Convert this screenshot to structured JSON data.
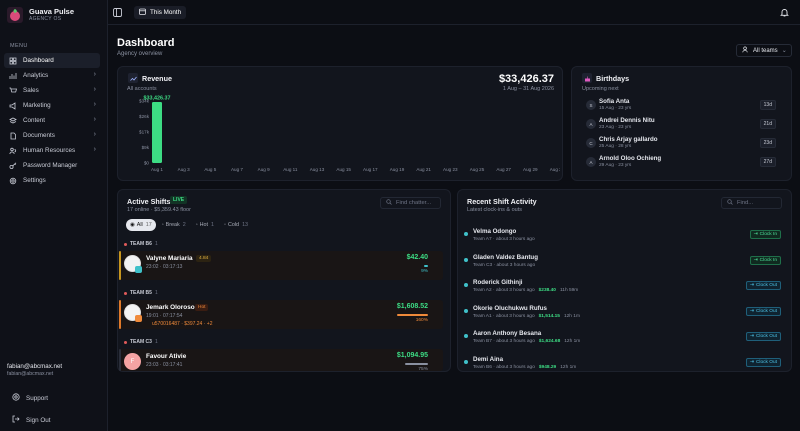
{
  "app": {
    "name": "Guava Pulse",
    "subtitle": "AGENCY OS"
  },
  "sidebar": {
    "menu_label": "MENU",
    "items": [
      {
        "label": "Dashboard",
        "icon": "grid-icon",
        "active": true,
        "chevron": false
      },
      {
        "label": "Analytics",
        "icon": "chart-icon",
        "chevron": true
      },
      {
        "label": "Sales",
        "icon": "cart-icon",
        "chevron": true
      },
      {
        "label": "Marketing",
        "icon": "megaphone-icon",
        "chevron": true
      },
      {
        "label": "Content",
        "icon": "layers-icon",
        "chevron": true
      },
      {
        "label": "Documents",
        "icon": "document-icon",
        "chevron": true
      },
      {
        "label": "Human Resources",
        "icon": "users-icon",
        "chevron": true
      },
      {
        "label": "Password Manager",
        "icon": "key-icon",
        "chevron": false
      },
      {
        "label": "Settings",
        "icon": "gear-icon",
        "chevron": false
      }
    ],
    "user_name": "fabian@abcmax.net",
    "user_email": "fabian@abcmax.net",
    "support": "Support",
    "sign_out": "Sign Out"
  },
  "topbar": {
    "period": "This Month"
  },
  "page": {
    "title": "Dashboard",
    "subtitle": "Agency overview",
    "teams_filter": "All teams"
  },
  "revenue": {
    "title": "Revenue",
    "subtitle": "All accounts",
    "total": "$33,426.37",
    "range": "1 Aug – 31 Aug 2026",
    "bar_label": "$33,426.37"
  },
  "chart_data": {
    "type": "bar",
    "title": "Revenue",
    "categories": [
      "Aug 1",
      "Aug 3",
      "Aug 5",
      "Aug 7",
      "Aug 9",
      "Aug 11",
      "Aug 13",
      "Aug 15",
      "Aug 17",
      "Aug 19",
      "Aug 21",
      "Aug 23",
      "Aug 25",
      "Aug 27",
      "Aug 29",
      "Aug 31"
    ],
    "values": [
      33426.37,
      0,
      0,
      0,
      0,
      0,
      0,
      0,
      0,
      0,
      0,
      0,
      0,
      0,
      0,
      0
    ],
    "y_ticks": [
      "$0",
      "$9k",
      "$17k",
      "$26k",
      "$34k"
    ],
    "ylim": [
      0,
      34000
    ],
    "grid": false
  },
  "birthdays": {
    "title": "Birthdays",
    "subtitle": "Upcoming next",
    "items": [
      {
        "initials": "S",
        "name": "Sofia Anta",
        "detail": "15 Aug · 23 yrs",
        "days": "13d"
      },
      {
        "initials": "A",
        "name": "Andrei Dennis Nitu",
        "detail": "23 Aug · 23 yrs",
        "days": "21d"
      },
      {
        "initials": "C",
        "name": "Chris Arjay gallardo",
        "detail": "25 Aug · 28 yrs",
        "days": "23d"
      },
      {
        "initials": "A",
        "name": "Arnold Oloo Ochieng",
        "detail": "29 Aug · 23 yrs",
        "days": "27d"
      }
    ]
  },
  "shifts": {
    "title": "Active Shifts",
    "live": "LIVE",
    "summary": "17 online · $5,359.43 floor",
    "search_placeholder": "Find chatter...",
    "tabs": [
      {
        "label": "All",
        "count": "17"
      },
      {
        "label": "Break",
        "count": "2"
      },
      {
        "label": "Hot",
        "count": "1"
      },
      {
        "label": "Cold",
        "count": "13"
      }
    ],
    "groups": [
      {
        "team": "TEAM B6",
        "count": "1",
        "name": "Valyne Mariaria",
        "meta": "23:02 · 03:17:13",
        "badge": "4.84",
        "amount": "$42.40",
        "pct": "9%",
        "progress": 0.09,
        "accent": "#c8961e",
        "color": "#3fc1c9"
      },
      {
        "team": "TEAM B5",
        "count": "1",
        "name": "Jemark Oloroso",
        "meta": "19:01 · 07:17:54",
        "badge": "Hot",
        "tag": "u570016487 · $397.24 · +2",
        "amount": "$1,608.52",
        "pct": "160%",
        "progress": 1.0,
        "accent": "#e07a2a",
        "color": "#f08a3a"
      },
      {
        "team": "TEAM C3",
        "count": "1",
        "name": "Favour Ativie",
        "meta": "23:03 · 03:17:41",
        "initials": "F",
        "amount": "$1,094.95",
        "pct": "75%",
        "progress": 0.75,
        "accent": "#2a2e3a",
        "color": "#8a90a0"
      }
    ]
  },
  "activity": {
    "title": "Recent Shift Activity",
    "subtitle": "Latest clock-ins & outs",
    "search_placeholder": "Find...",
    "items": [
      {
        "name": "Velma Odongo",
        "team": "Team A7",
        "time": "about 3 hours ago",
        "amount": "",
        "duration": "",
        "action": "Clock In",
        "kind": "in"
      },
      {
        "name": "Gladen Valdez Bantug",
        "team": "Team C3",
        "time": "about 3 hours ago",
        "amount": "",
        "duration": "",
        "action": "Clock In",
        "kind": "in"
      },
      {
        "name": "Roderick Githinji",
        "team": "Team A2",
        "time": "about 3 hours ago",
        "amount": "$238.40",
        "duration": "11h 59m",
        "action": "Clock Out",
        "kind": "out"
      },
      {
        "name": "Okorie Oluchukwu Rufus",
        "team": "Team A1",
        "time": "about 3 hours ago",
        "amount": "$1,514.15",
        "duration": "12h 1m",
        "action": "Clock Out",
        "kind": "out"
      },
      {
        "name": "Aaron Anthony Besana",
        "team": "Team B7",
        "time": "about 3 hours ago",
        "amount": "$1,624.68",
        "duration": "12h 1m",
        "action": "Clock Out",
        "kind": "out"
      },
      {
        "name": "Demi Aina",
        "team": "Team B6",
        "time": "about 3 hours ago",
        "amount": "$948.29",
        "duration": "12h 1m",
        "action": "Clock Out",
        "kind": "out"
      }
    ]
  }
}
